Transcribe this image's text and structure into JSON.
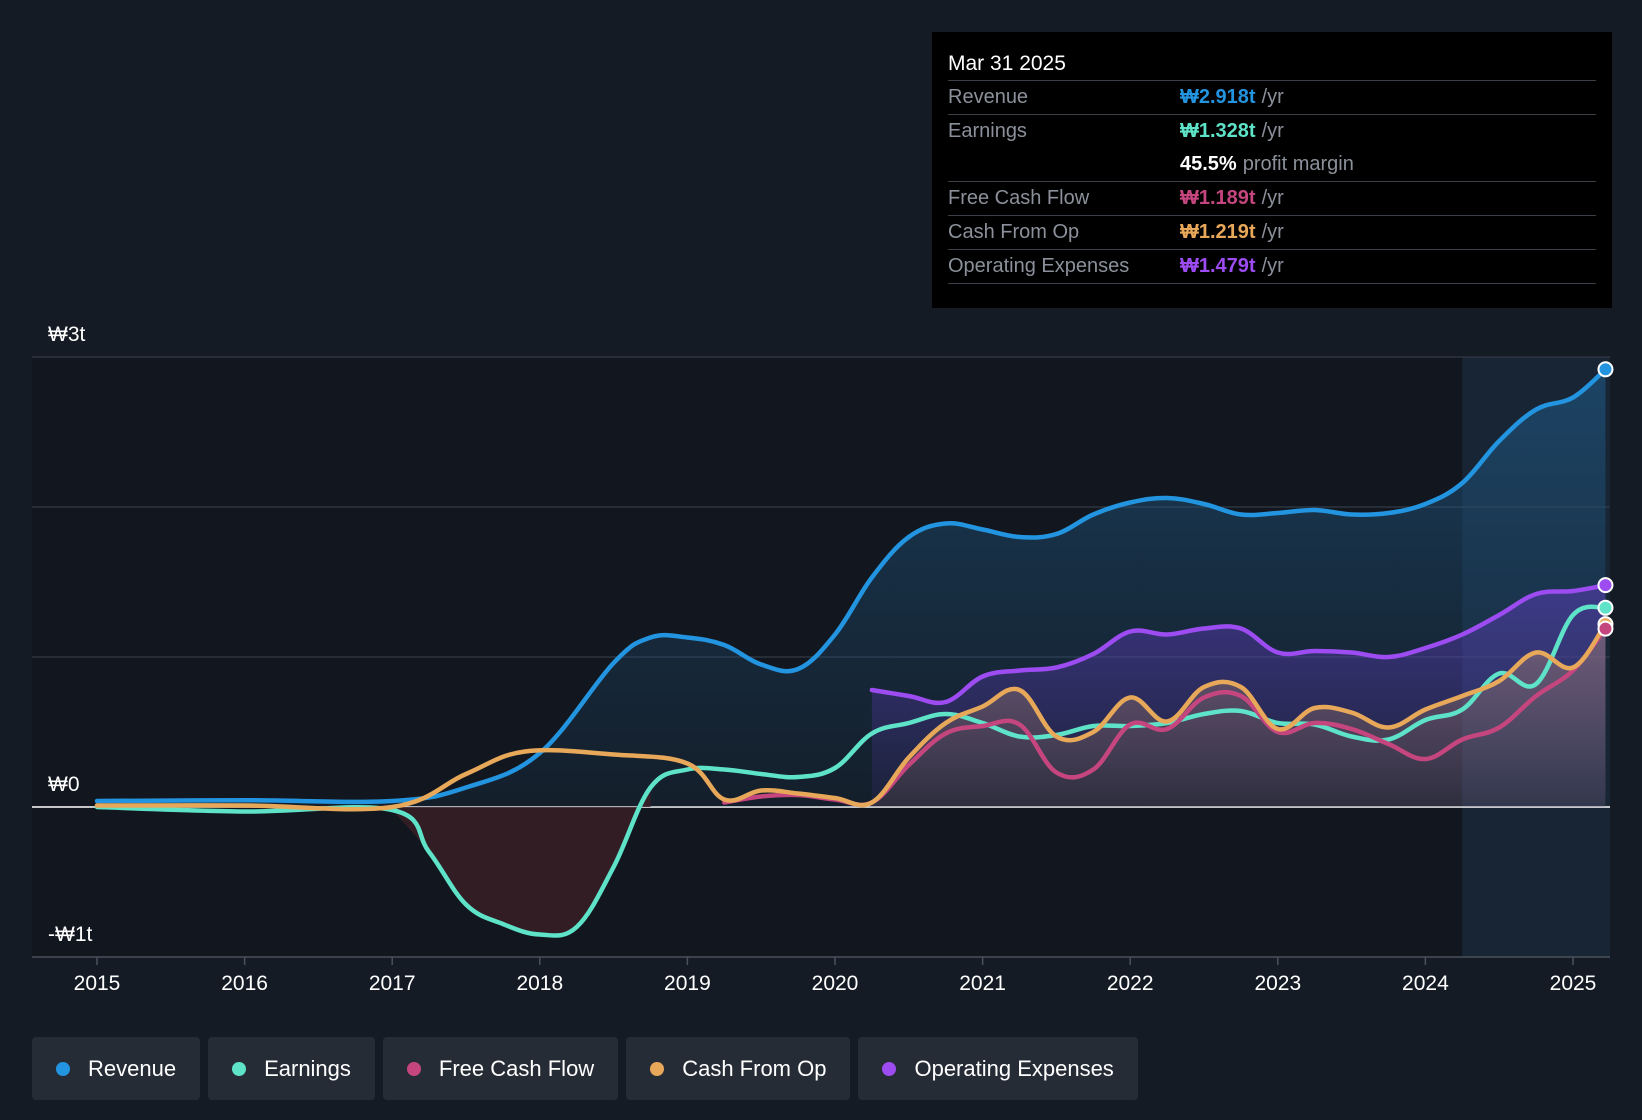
{
  "tooltip": {
    "date": "Mar 31 2025",
    "rows": [
      {
        "label": "Revenue",
        "value": "₩2.918t",
        "unit": "/yr",
        "color": "#2394df"
      },
      {
        "label": "Earnings",
        "value": "₩1.328t",
        "unit": "/yr",
        "color": "#5ee3c8"
      },
      {
        "label": "",
        "value": "45.5%",
        "unit": "profit margin",
        "color": "#ffffff"
      },
      {
        "label": "Free Cash Flow",
        "value": "₩1.189t",
        "unit": "/yr",
        "color": "#c5467e"
      },
      {
        "label": "Cash From Op",
        "value": "₩1.219t",
        "unit": "/yr",
        "color": "#e8a85a"
      },
      {
        "label": "Operating Expenses",
        "value": "₩1.479t",
        "unit": "/yr",
        "color": "#9c4cf0"
      }
    ]
  },
  "legend": [
    {
      "label": "Revenue",
      "color": "#2394df"
    },
    {
      "label": "Earnings",
      "color": "#5ee3c8"
    },
    {
      "label": "Free Cash Flow",
      "color": "#c5467e"
    },
    {
      "label": "Cash From Op",
      "color": "#e8a85a"
    },
    {
      "label": "Operating Expenses",
      "color": "#9c4cf0"
    }
  ],
  "chart_data": {
    "type": "area",
    "title": "",
    "xlabel": "",
    "ylabel": "",
    "y_unit": "₩ trillion",
    "ylim": [
      -1,
      3
    ],
    "y_ticks": [
      {
        "value": 3,
        "label": "₩3t"
      },
      {
        "value": 0,
        "label": "₩0"
      },
      {
        "value": -1,
        "label": "-₩1t"
      }
    ],
    "gridlines": [
      3,
      2,
      1,
      0
    ],
    "xlim": [
      2014.6,
      2025.25
    ],
    "x_ticks": [
      "2015",
      "2016",
      "2017",
      "2018",
      "2019",
      "2020",
      "2021",
      "2022",
      "2023",
      "2024",
      "2025"
    ],
    "highlight_region": [
      2024.25,
      2025.25
    ],
    "series": [
      {
        "name": "Revenue",
        "color": "#2394df",
        "points": [
          [
            2015,
            0.04
          ],
          [
            2016,
            0.045
          ],
          [
            2017,
            0.04
          ],
          [
            2017.5,
            0.13
          ],
          [
            2018,
            0.36
          ],
          [
            2018.5,
            0.96
          ],
          [
            2018.75,
            1.13
          ],
          [
            2019,
            1.13
          ],
          [
            2019.25,
            1.08
          ],
          [
            2019.5,
            0.95
          ],
          [
            2019.75,
            0.92
          ],
          [
            2020,
            1.15
          ],
          [
            2020.25,
            1.53
          ],
          [
            2020.5,
            1.8
          ],
          [
            2020.75,
            1.89
          ],
          [
            2021,
            1.85
          ],
          [
            2021.25,
            1.8
          ],
          [
            2021.5,
            1.82
          ],
          [
            2021.75,
            1.95
          ],
          [
            2022,
            2.03
          ],
          [
            2022.25,
            2.06
          ],
          [
            2022.5,
            2.02
          ],
          [
            2022.75,
            1.95
          ],
          [
            2023,
            1.96
          ],
          [
            2023.25,
            1.98
          ],
          [
            2023.5,
            1.95
          ],
          [
            2023.75,
            1.96
          ],
          [
            2024,
            2.02
          ],
          [
            2024.25,
            2.16
          ],
          [
            2024.5,
            2.44
          ],
          [
            2024.75,
            2.65
          ],
          [
            2025,
            2.73
          ],
          [
            2025.22,
            2.918
          ]
        ]
      },
      {
        "name": "Earnings",
        "color": "#5ee3c8",
        "points": [
          [
            2015,
            0.0
          ],
          [
            2016,
            -0.03
          ],
          [
            2017,
            -0.02
          ],
          [
            2017.25,
            -0.3
          ],
          [
            2017.5,
            -0.65
          ],
          [
            2017.75,
            -0.78
          ],
          [
            2018,
            -0.85
          ],
          [
            2018.25,
            -0.8
          ],
          [
            2018.5,
            -0.4
          ],
          [
            2018.75,
            0.13
          ],
          [
            2019,
            0.25
          ],
          [
            2019.25,
            0.25
          ],
          [
            2019.5,
            0.22
          ],
          [
            2019.75,
            0.2
          ],
          [
            2020,
            0.26
          ],
          [
            2020.25,
            0.49
          ],
          [
            2020.5,
            0.56
          ],
          [
            2020.75,
            0.62
          ],
          [
            2021,
            0.56
          ],
          [
            2021.25,
            0.47
          ],
          [
            2021.5,
            0.48
          ],
          [
            2021.75,
            0.54
          ],
          [
            2022,
            0.54
          ],
          [
            2022.25,
            0.56
          ],
          [
            2022.5,
            0.62
          ],
          [
            2022.75,
            0.64
          ],
          [
            2023,
            0.56
          ],
          [
            2023.25,
            0.55
          ],
          [
            2023.5,
            0.47
          ],
          [
            2023.75,
            0.45
          ],
          [
            2024,
            0.58
          ],
          [
            2024.25,
            0.65
          ],
          [
            2024.5,
            0.89
          ],
          [
            2024.75,
            0.82
          ],
          [
            2025,
            1.28
          ],
          [
            2025.22,
            1.328
          ]
        ]
      },
      {
        "name": "Free Cash Flow",
        "color": "#c5467e",
        "points": [
          [
            2019.25,
            0.03
          ],
          [
            2019.5,
            0.07
          ],
          [
            2019.75,
            0.08
          ],
          [
            2020,
            0.05
          ],
          [
            2020.25,
            0.03
          ],
          [
            2020.5,
            0.28
          ],
          [
            2020.75,
            0.49
          ],
          [
            2021,
            0.54
          ],
          [
            2021.25,
            0.55
          ],
          [
            2021.5,
            0.23
          ],
          [
            2021.75,
            0.25
          ],
          [
            2022,
            0.55
          ],
          [
            2022.25,
            0.52
          ],
          [
            2022.5,
            0.73
          ],
          [
            2022.75,
            0.74
          ],
          [
            2023,
            0.5
          ],
          [
            2023.25,
            0.56
          ],
          [
            2023.5,
            0.52
          ],
          [
            2023.75,
            0.42
          ],
          [
            2024,
            0.32
          ],
          [
            2024.25,
            0.45
          ],
          [
            2024.5,
            0.53
          ],
          [
            2024.75,
            0.74
          ],
          [
            2025,
            0.91
          ],
          [
            2025.22,
            1.189
          ]
        ]
      },
      {
        "name": "Cash From Op",
        "color": "#e8a85a",
        "points": [
          [
            2015,
            0.01
          ],
          [
            2016,
            0.01
          ],
          [
            2017,
            0.0
          ],
          [
            2017.5,
            0.22
          ],
          [
            2017.9,
            0.37
          ],
          [
            2018.5,
            0.35
          ],
          [
            2019,
            0.29
          ],
          [
            2019.25,
            0.05
          ],
          [
            2019.5,
            0.11
          ],
          [
            2019.75,
            0.09
          ],
          [
            2020,
            0.06
          ],
          [
            2020.25,
            0.03
          ],
          [
            2020.5,
            0.33
          ],
          [
            2020.75,
            0.56
          ],
          [
            2021,
            0.67
          ],
          [
            2021.25,
            0.78
          ],
          [
            2021.5,
            0.47
          ],
          [
            2021.75,
            0.5
          ],
          [
            2022,
            0.73
          ],
          [
            2022.25,
            0.57
          ],
          [
            2022.5,
            0.8
          ],
          [
            2022.75,
            0.8
          ],
          [
            2023,
            0.52
          ],
          [
            2023.25,
            0.66
          ],
          [
            2023.5,
            0.63
          ],
          [
            2023.75,
            0.53
          ],
          [
            2024,
            0.65
          ],
          [
            2024.25,
            0.74
          ],
          [
            2024.5,
            0.84
          ],
          [
            2024.75,
            1.03
          ],
          [
            2025,
            0.93
          ],
          [
            2025.22,
            1.219
          ]
        ]
      },
      {
        "name": "Operating Expenses",
        "color": "#9c4cf0",
        "points": [
          [
            2020.25,
            0.78
          ],
          [
            2020.5,
            0.74
          ],
          [
            2020.75,
            0.7
          ],
          [
            2021,
            0.87
          ],
          [
            2021.25,
            0.91
          ],
          [
            2021.5,
            0.93
          ],
          [
            2021.75,
            1.02
          ],
          [
            2022,
            1.17
          ],
          [
            2022.25,
            1.15
          ],
          [
            2022.5,
            1.19
          ],
          [
            2022.75,
            1.19
          ],
          [
            2023,
            1.03
          ],
          [
            2023.25,
            1.04
          ],
          [
            2023.5,
            1.03
          ],
          [
            2023.75,
            1.0
          ],
          [
            2024,
            1.06
          ],
          [
            2024.25,
            1.15
          ],
          [
            2024.5,
            1.28
          ],
          [
            2024.75,
            1.42
          ],
          [
            2025,
            1.44
          ],
          [
            2025.22,
            1.479
          ]
        ]
      }
    ]
  }
}
